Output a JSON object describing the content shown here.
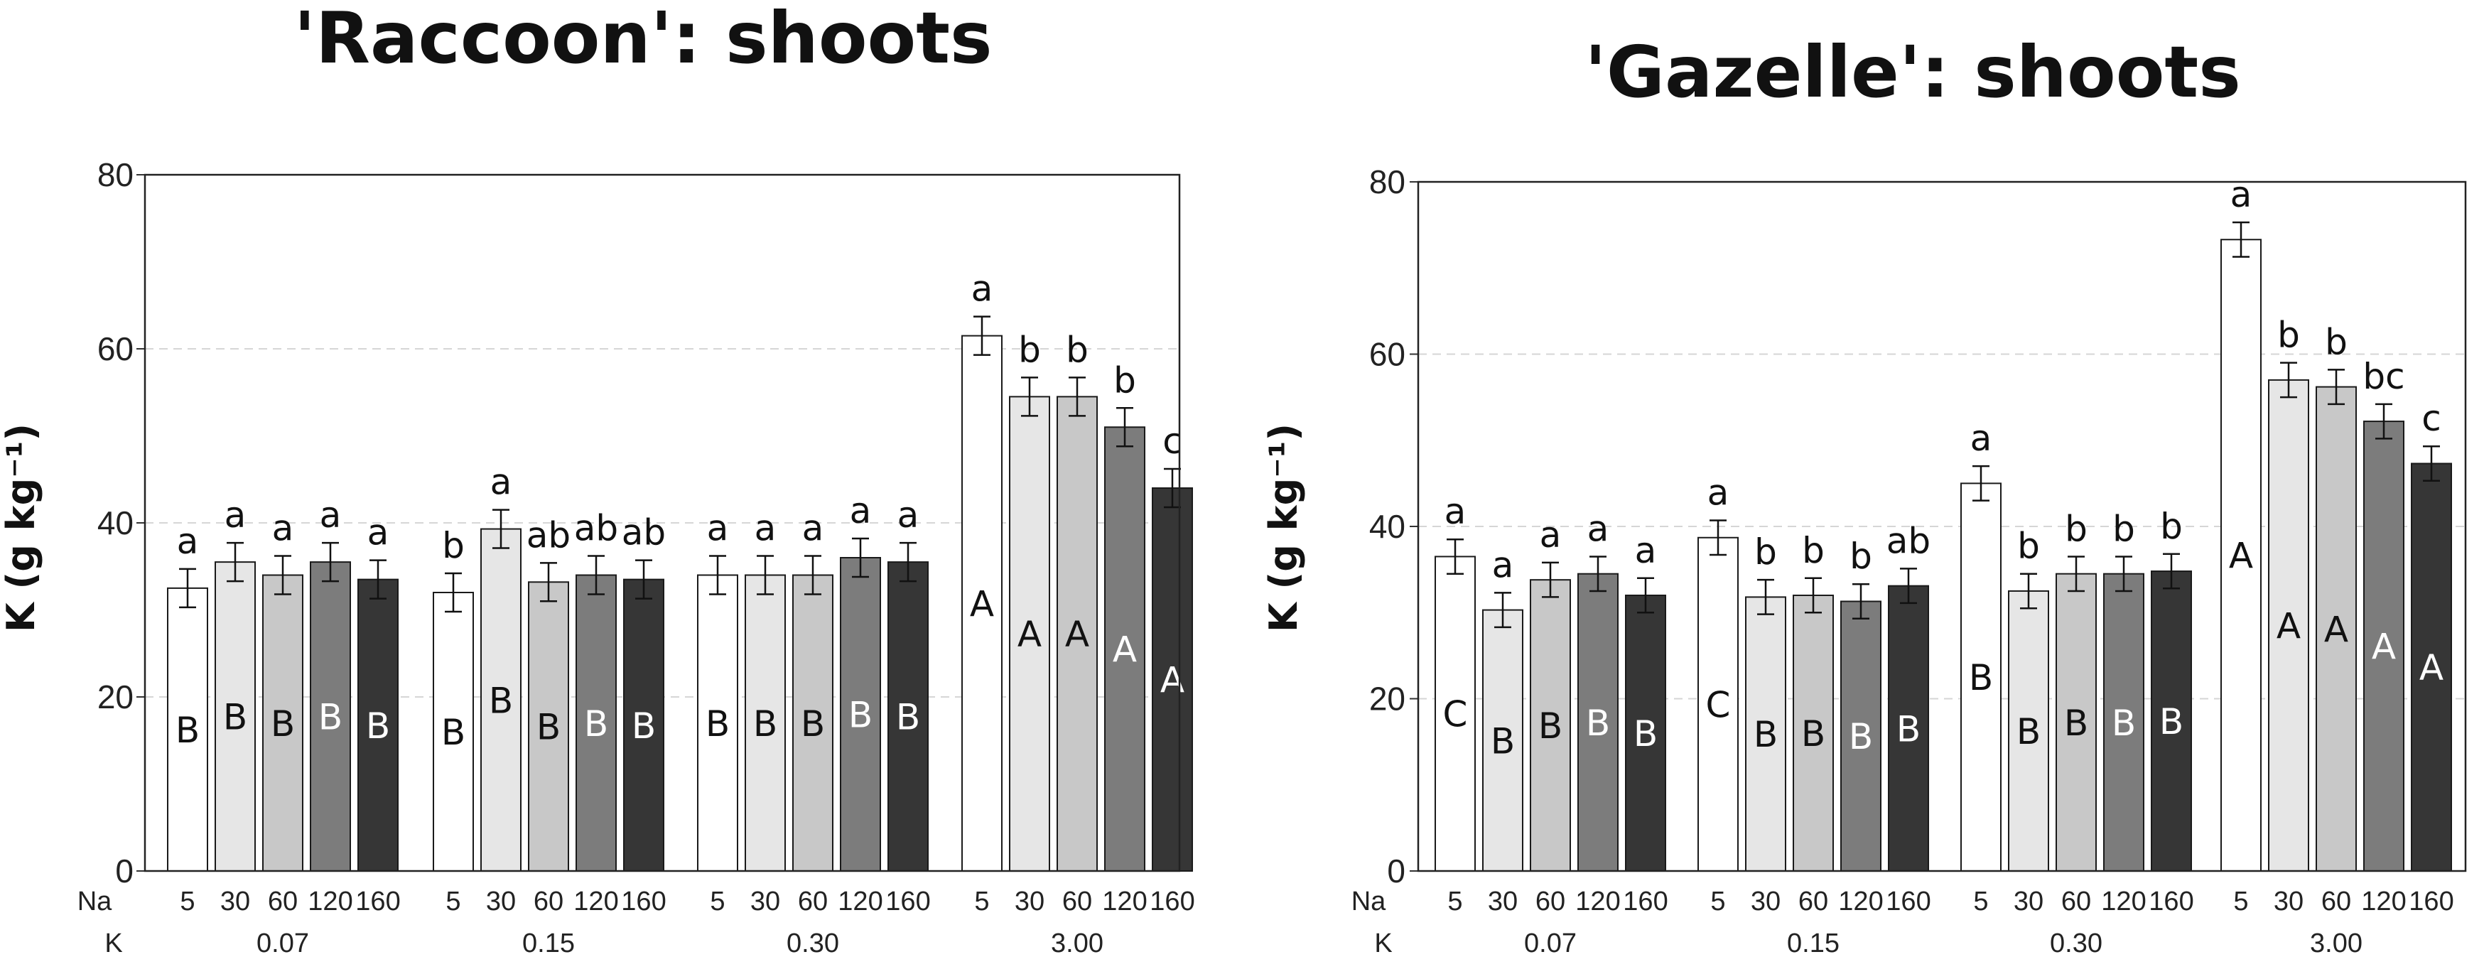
{
  "chart_data": [
    {
      "type": "bar",
      "title": "'Raccoon': shoots",
      "ylabel": "K (g kg⁻¹)",
      "ylim": [
        0,
        80
      ],
      "yticks": [
        "0",
        "20",
        "40",
        "60",
        "80"
      ],
      "grid": "dashed horizontal",
      "xrow1_label": "Na",
      "xrow2_label": "K",
      "na_levels": [
        "5",
        "30",
        "60",
        "120",
        "160"
      ],
      "k_levels": [
        "0.07",
        "0.15",
        "0.30",
        "3.00"
      ],
      "bar_colors": [
        "#ffffff",
        "#e6e6e6",
        "#c8c8c8",
        "#7c7c7c",
        "#363636"
      ],
      "groups": [
        {
          "k": "0.07",
          "values": [
            32.5,
            35.5,
            34.0,
            35.5,
            33.5
          ],
          "errors": [
            2.2,
            2.2,
            2.2,
            2.2,
            2.2
          ],
          "top_letters": [
            "a",
            "a",
            "a",
            "a",
            "a"
          ],
          "inner_letters": [
            "B",
            "B",
            "B",
            "B",
            "B"
          ]
        },
        {
          "k": "0.15",
          "values": [
            32.0,
            39.3,
            33.2,
            34.0,
            33.5
          ],
          "errors": [
            2.2,
            2.2,
            2.2,
            2.2,
            2.2
          ],
          "top_letters": [
            "b",
            "a",
            "ab",
            "ab",
            "ab"
          ],
          "inner_letters": [
            "B",
            "B",
            "B",
            "B",
            "B"
          ]
        },
        {
          "k": "0.30",
          "values": [
            34.0,
            34.0,
            34.0,
            36.0,
            35.5
          ],
          "errors": [
            2.2,
            2.2,
            2.2,
            2.2,
            2.2
          ],
          "top_letters": [
            "a",
            "a",
            "a",
            "a",
            "a"
          ],
          "inner_letters": [
            "B",
            "B",
            "B",
            "B",
            "B"
          ]
        },
        {
          "k": "3.00",
          "values": [
            61.5,
            54.5,
            54.5,
            51.0,
            44.0
          ],
          "errors": [
            2.2,
            2.2,
            2.2,
            2.2,
            2.2
          ],
          "top_letters": [
            "a",
            "b",
            "b",
            "b",
            "c"
          ],
          "inner_letters": [
            "A",
            "A",
            "A",
            "A",
            "A"
          ]
        }
      ]
    },
    {
      "type": "bar",
      "title": "'Gazelle': shoots",
      "ylabel": "K (g kg⁻¹)",
      "ylim": [
        0,
        80
      ],
      "yticks": [
        "0",
        "20",
        "40",
        "60",
        "80"
      ],
      "grid": "dashed horizontal",
      "xrow1_label": "Na",
      "xrow2_label": "K",
      "na_levels": [
        "5",
        "30",
        "60",
        "120",
        "160"
      ],
      "k_levels": [
        "0.07",
        "0.15",
        "0.30",
        "3.00"
      ],
      "bar_colors": [
        "#ffffff",
        "#e6e6e6",
        "#c8c8c8",
        "#7c7c7c",
        "#363636"
      ],
      "groups": [
        {
          "k": "0.07",
          "values": [
            36.5,
            30.3,
            33.8,
            34.5,
            32.0
          ],
          "errors": [
            2.0,
            2.0,
            2.0,
            2.0,
            2.0
          ],
          "top_letters": [
            "a",
            "a",
            "a",
            "a",
            "a"
          ],
          "inner_letters": [
            "C",
            "B",
            "B",
            "B",
            "B"
          ]
        },
        {
          "k": "0.15",
          "values": [
            38.7,
            31.8,
            32.0,
            31.3,
            33.1
          ],
          "errors": [
            2.0,
            2.0,
            2.0,
            2.0,
            2.0
          ],
          "top_letters": [
            "a",
            "b",
            "b",
            "b",
            "ab"
          ],
          "inner_letters": [
            "C",
            "B",
            "B",
            "B",
            "B"
          ]
        },
        {
          "k": "0.30",
          "values": [
            45.0,
            32.5,
            34.5,
            34.5,
            34.8
          ],
          "errors": [
            2.0,
            2.0,
            2.0,
            2.0,
            2.0
          ],
          "top_letters": [
            "a",
            "b",
            "b",
            "b",
            "b"
          ],
          "inner_letters": [
            "B",
            "B",
            "B",
            "B",
            "B"
          ]
        },
        {
          "k": "3.00",
          "values": [
            73.3,
            57.0,
            56.2,
            52.2,
            47.3
          ],
          "errors": [
            2.0,
            2.0,
            2.0,
            2.0,
            2.0
          ],
          "top_letters": [
            "a",
            "b",
            "b",
            "bc",
            "c"
          ],
          "inner_letters": [
            "A",
            "A",
            "A",
            "A",
            "A"
          ]
        }
      ]
    }
  ]
}
